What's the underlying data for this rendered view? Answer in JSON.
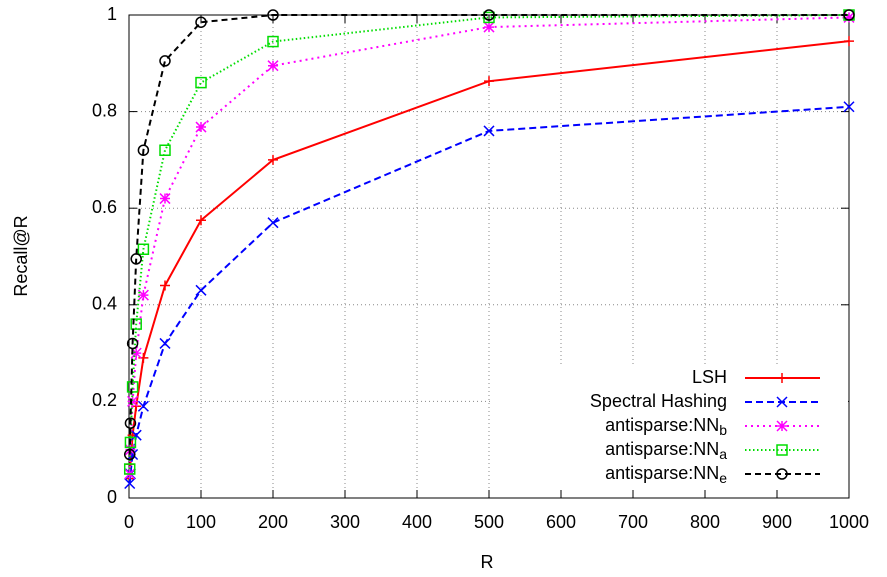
{
  "chart_data": {
    "type": "line",
    "xlabel": "R",
    "ylabel": "Recall@R",
    "x": [
      1,
      2,
      5,
      10,
      20,
      50,
      100,
      200,
      500,
      1000
    ],
    "series": [
      {
        "name": "LSH",
        "color": "#ff0000",
        "marker": "plus",
        "values": [
          0.04,
          0.07,
          0.13,
          0.19,
          0.29,
          0.44,
          0.575,
          0.7,
          0.863,
          0.946
        ]
      },
      {
        "name": "Spectral Hashing",
        "color": "#0000ff",
        "marker": "cross",
        "values": [
          0.03,
          0.05,
          0.09,
          0.13,
          0.19,
          0.32,
          0.43,
          0.57,
          0.76,
          0.81
        ]
      },
      {
        "name": "antisparse:NNb",
        "color": "#ff00ff",
        "marker": "star",
        "values": [
          0.05,
          0.1,
          0.2,
          0.3,
          0.42,
          0.62,
          0.768,
          0.895,
          0.975,
          0.995
        ]
      },
      {
        "name": "antisparse:NNa",
        "color": "#00dd00",
        "marker": "square",
        "values": [
          0.06,
          0.115,
          0.23,
          0.36,
          0.515,
          0.72,
          0.86,
          0.945,
          0.995,
          1
        ]
      },
      {
        "name": "antisparse:NNe",
        "color": "#000000",
        "marker": "circle",
        "values": [
          0.09,
          0.155,
          0.32,
          0.495,
          0.72,
          0.905,
          0.985,
          1,
          1,
          1
        ]
      }
    ],
    "xlim": [
      0,
      1000
    ],
    "xticks": [
      0,
      100,
      200,
      300,
      400,
      500,
      600,
      700,
      800,
      900,
      1000
    ],
    "ylim": [
      0,
      1
    ],
    "yticks": [
      0,
      0.2,
      0.4,
      0.6,
      0.8,
      1
    ],
    "grid": true,
    "legend": "lower right"
  }
}
